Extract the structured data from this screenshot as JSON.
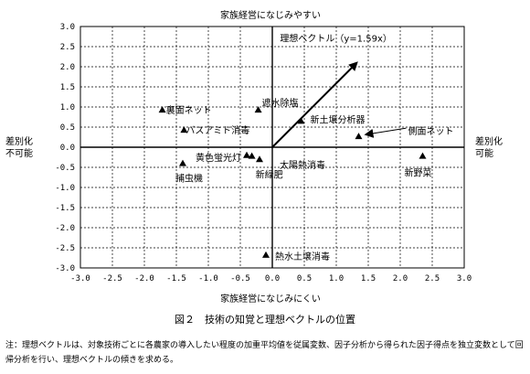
{
  "chart_data": {
    "type": "scatter",
    "title": "",
    "top_label": "家族経営になじみやすい",
    "bottom_label": "家族経営になじみにくい",
    "left_label": "差別化\n不可能",
    "right_label": "差別化\n可能",
    "xlim": [
      -3.0,
      3.0
    ],
    "ylim": [
      -3.0,
      3.0
    ],
    "x_ticks": [
      "-3.0",
      "-2.5",
      "-2.0",
      "-1.5",
      "-1.0",
      "-0.5",
      "0.0",
      "0.5",
      "1.0",
      "1.5",
      "2.0",
      "2.5",
      "3.0"
    ],
    "y_ticks": [
      "3.0",
      "2.5",
      "2.0",
      "1.5",
      "1.0",
      "0.5",
      "0.0",
      "-0.5",
      "-1.0",
      "-1.5",
      "-2.0",
      "-2.5",
      "-3.0"
    ],
    "grid": true,
    "points": [
      {
        "label": "裏面ネット",
        "x": -1.72,
        "y": 0.93
      },
      {
        "label": "遮水除塩",
        "x": -0.22,
        "y": 0.93
      },
      {
        "label": "バスアミド消毒",
        "x": -1.38,
        "y": 0.43
      },
      {
        "label": "新土壌分析器",
        "x": 0.45,
        "y": 0.65
      },
      {
        "label": "側面ネット",
        "x": 1.35,
        "y": 0.27
      },
      {
        "label": "黄色蛍光灯",
        "x": -0.4,
        "y": -0.2
      },
      {
        "label": "捕虫機",
        "x": -1.4,
        "y": -0.4
      },
      {
        "label": "新緑肥",
        "x": -0.32,
        "y": -0.22
      },
      {
        "label": "太陽熱消毒",
        "x": -0.2,
        "y": -0.3
      },
      {
        "label": "新野菜",
        "x": 2.35,
        "y": -0.22
      },
      {
        "label": "熱水土壌消毒",
        "x": -0.1,
        "y": -2.68
      }
    ],
    "ideal_vector": {
      "label": "理想ベクトル（y=1.59x）",
      "slope": 1.59
    }
  },
  "caption": "図２　技術の知覚と理想ベクトルの位置",
  "note": "注：理想ベクトルは、対象技術ごとに各農家の導入したい程度の加重平均値を従属変数、因子分析から得られた因子得点を独立変数として回帰分析を行い、理想ベクトルの傾きを求める。"
}
